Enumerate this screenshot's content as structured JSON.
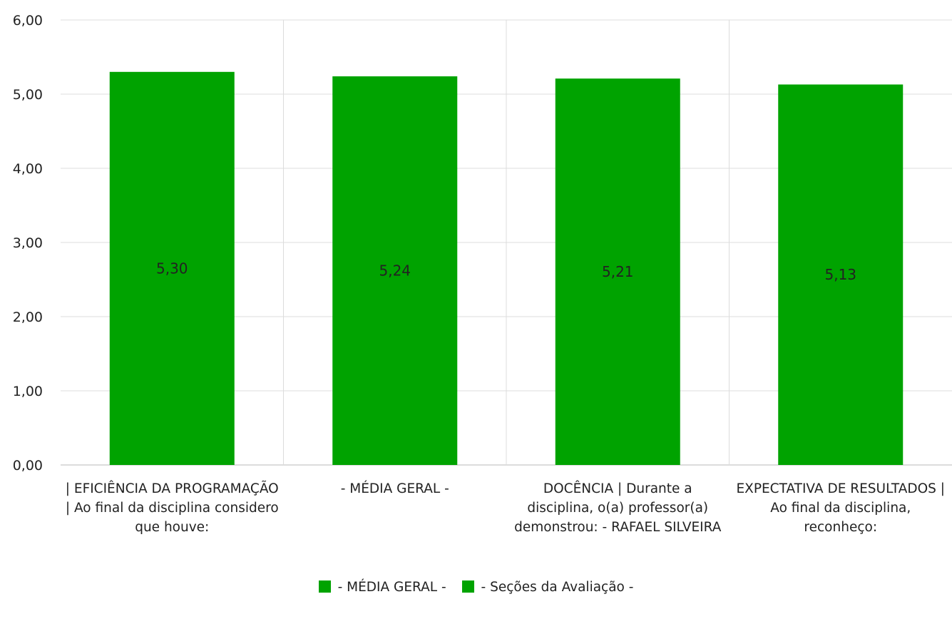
{
  "chart_data": {
    "type": "bar",
    "title": "",
    "xlabel": "",
    "ylabel": "",
    "ylim": [
      0,
      6
    ],
    "y_ticks": [
      "0,00",
      "1,00",
      "2,00",
      "3,00",
      "4,00",
      "5,00",
      "6,00"
    ],
    "grid": true,
    "legend_position": "bottom",
    "categories": [
      "| EFICIÊNCIA DA PROGRAMAÇÃO | Ao final da disciplina considero que houve:",
      "- MÉDIA GERAL -",
      "DOCÊNCIA | Durante a disciplina, o(a) professor(a) demonstrou: - RAFAEL SILVEIRA",
      "EXPECTATIVA DE RESULTADOS | Ao final da disciplina, reconheço:"
    ],
    "values": [
      5.3,
      5.24,
      5.21,
      5.13
    ],
    "data_labels": [
      "5,30",
      "5,24",
      "5,21",
      "5,13"
    ],
    "bar_color": "#00a300",
    "legend": [
      {
        "label": "- MÉDIA GERAL -",
        "color": "#00a300"
      },
      {
        "label": "- Seções da Avaliação -",
        "color": "#00a300"
      }
    ]
  }
}
